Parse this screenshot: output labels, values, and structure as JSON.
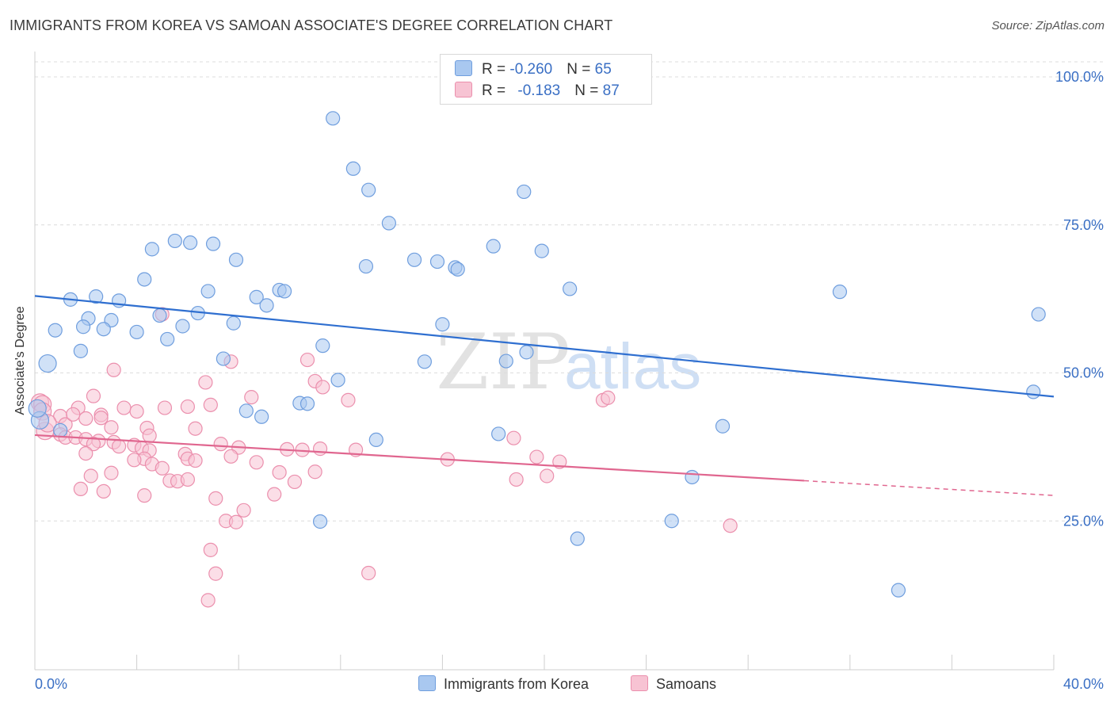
{
  "title": "IMMIGRANTS FROM KOREA VS SAMOAN ASSOCIATE'S DEGREE CORRELATION CHART",
  "source": "Source: ZipAtlas.com",
  "watermark": {
    "zip": "ZIP",
    "atlas": "atlas"
  },
  "legend": {
    "korea": {
      "r_label": "R = ",
      "r_value": "-0.260",
      "n_label": "N = ",
      "n_value": "65"
    },
    "samoa": {
      "r_label": "R = ",
      "r_value": "-0.183",
      "n_label": "N = ",
      "n_value": "87"
    }
  },
  "chart_data": {
    "type": "scatter",
    "ylabel": "Associate's Degree",
    "xlim": [
      0,
      40
    ],
    "ylim": [
      0,
      105
    ],
    "x_tick_labels": {
      "left": "0.0%",
      "right": "40.0%"
    },
    "y_ticks": [
      {
        "value": 100,
        "label": "100.0%"
      },
      {
        "value": 75,
        "label": "75.0%"
      },
      {
        "value": 50,
        "label": "50.0%"
      },
      {
        "value": 25,
        "label": "25.0%"
      }
    ],
    "grid": "horizontal dashed",
    "legend_placement": "top-center",
    "colors": {
      "korea_fill": "#a9c8f0",
      "korea_stroke": "#6f9ede",
      "korea_line": "#2f6fd0",
      "samoa_fill": "#f7c3d3",
      "samoa_stroke": "#eb8fad",
      "samoa_line": "#e0668f",
      "tick_label": "#3a6fc4"
    },
    "series": [
      {
        "name": "Immigrants from Korea",
        "trend": {
          "x0": 0,
          "y0": 63,
          "x1": 40,
          "y1": 46
        },
        "points": [
          [
            11.7,
            93.0
          ],
          [
            12.5,
            84.5
          ],
          [
            13.1,
            80.9
          ],
          [
            19.2,
            80.6
          ],
          [
            13.9,
            75.3
          ],
          [
            5.5,
            72.3
          ],
          [
            6.1,
            72.0
          ],
          [
            7.0,
            71.8
          ],
          [
            4.6,
            70.9
          ],
          [
            18.0,
            71.4
          ],
          [
            19.9,
            70.6
          ],
          [
            7.9,
            69.1
          ],
          [
            14.9,
            69.1
          ],
          [
            15.8,
            68.8
          ],
          [
            16.5,
            67.8
          ],
          [
            16.6,
            67.5
          ],
          [
            13.0,
            68.0
          ],
          [
            4.3,
            65.8
          ],
          [
            9.6,
            64.0
          ],
          [
            9.8,
            63.8
          ],
          [
            6.8,
            63.8
          ],
          [
            21.0,
            64.2
          ],
          [
            31.6,
            63.7
          ],
          [
            2.4,
            62.9
          ],
          [
            8.7,
            62.8
          ],
          [
            1.4,
            62.4
          ],
          [
            3.3,
            62.2
          ],
          [
            9.1,
            61.4
          ],
          [
            6.4,
            60.1
          ],
          [
            4.9,
            59.7
          ],
          [
            39.4,
            59.9
          ],
          [
            2.1,
            59.2
          ],
          [
            3.0,
            58.9
          ],
          [
            1.9,
            57.8
          ],
          [
            5.8,
            57.9
          ],
          [
            7.8,
            58.4
          ],
          [
            0.8,
            57.2
          ],
          [
            2.7,
            57.4
          ],
          [
            4.0,
            56.9
          ],
          [
            16.0,
            58.2
          ],
          [
            5.2,
            55.7
          ],
          [
            11.3,
            54.6
          ],
          [
            1.8,
            53.7
          ],
          [
            19.3,
            53.5
          ],
          [
            7.4,
            52.4
          ],
          [
            18.5,
            52.0
          ],
          [
            15.3,
            51.9
          ],
          [
            0.5,
            51.6
          ],
          [
            11.9,
            48.8
          ],
          [
            10.4,
            44.9
          ],
          [
            10.7,
            44.8
          ],
          [
            8.3,
            43.6
          ],
          [
            8.9,
            42.6
          ],
          [
            0.2,
            42.0
          ],
          [
            27.0,
            41.0
          ],
          [
            18.2,
            39.7
          ],
          [
            13.4,
            38.7
          ],
          [
            25.8,
            32.4
          ],
          [
            25.0,
            25.0
          ],
          [
            11.2,
            24.9
          ],
          [
            21.3,
            22.0
          ],
          [
            33.9,
            13.3
          ],
          [
            39.2,
            46.8
          ],
          [
            0.1,
            44.0
          ],
          [
            1.0,
            40.3
          ]
        ]
      },
      {
        "name": "Samoans",
        "trend": {
          "x0": 0,
          "y0": 39.5,
          "x1": 30.2,
          "y1": 31.8,
          "dash_x1": 40,
          "dash_y1": 29.3
        },
        "points": [
          [
            5.0,
            59.9
          ],
          [
            7.7,
            51.9
          ],
          [
            10.7,
            52.2
          ],
          [
            3.1,
            50.5
          ],
          [
            6.7,
            48.4
          ],
          [
            11.0,
            48.6
          ],
          [
            11.3,
            47.6
          ],
          [
            2.3,
            46.1
          ],
          [
            8.5,
            45.9
          ],
          [
            12.3,
            45.4
          ],
          [
            22.3,
            45.4
          ],
          [
            22.5,
            45.8
          ],
          [
            0.2,
            45.0
          ],
          [
            0.3,
            44.7
          ],
          [
            1.7,
            44.1
          ],
          [
            3.5,
            44.1
          ],
          [
            5.1,
            44.1
          ],
          [
            6.0,
            44.3
          ],
          [
            6.9,
            44.6
          ],
          [
            0.3,
            43.5
          ],
          [
            2.6,
            42.9
          ],
          [
            1.0,
            42.7
          ],
          [
            2.0,
            42.3
          ],
          [
            4.0,
            43.5
          ],
          [
            1.2,
            41.3
          ],
          [
            2.6,
            42.4
          ],
          [
            3.0,
            40.8
          ],
          [
            4.4,
            40.7
          ],
          [
            6.3,
            40.6
          ],
          [
            0.4,
            40.2
          ],
          [
            1.0,
            39.6
          ],
          [
            1.2,
            39.1
          ],
          [
            1.6,
            39.1
          ],
          [
            2.0,
            38.8
          ],
          [
            2.5,
            38.5
          ],
          [
            2.3,
            38.0
          ],
          [
            4.5,
            39.4
          ],
          [
            3.1,
            38.3
          ],
          [
            3.3,
            37.6
          ],
          [
            3.9,
            37.8
          ],
          [
            4.2,
            37.3
          ],
          [
            4.5,
            36.9
          ],
          [
            7.3,
            38.0
          ],
          [
            8.0,
            37.4
          ],
          [
            9.9,
            37.1
          ],
          [
            10.5,
            37.0
          ],
          [
            11.2,
            37.2
          ],
          [
            12.6,
            37.0
          ],
          [
            5.9,
            36.3
          ],
          [
            6.0,
            35.5
          ],
          [
            4.3,
            35.5
          ],
          [
            3.9,
            35.3
          ],
          [
            2.0,
            36.4
          ],
          [
            8.7,
            34.9
          ],
          [
            4.6,
            34.6
          ],
          [
            7.7,
            35.9
          ],
          [
            16.2,
            35.4
          ],
          [
            19.7,
            35.8
          ],
          [
            20.6,
            35.0
          ],
          [
            18.8,
            39.0
          ],
          [
            9.6,
            33.2
          ],
          [
            10.2,
            31.6
          ],
          [
            11.0,
            33.3
          ],
          [
            2.2,
            32.6
          ],
          [
            3.0,
            33.1
          ],
          [
            5.3,
            31.8
          ],
          [
            5.6,
            31.7
          ],
          [
            6.0,
            32.0
          ],
          [
            20.1,
            32.6
          ],
          [
            18.9,
            32.0
          ],
          [
            1.8,
            30.4
          ],
          [
            2.7,
            30.0
          ],
          [
            4.3,
            29.3
          ],
          [
            7.1,
            28.8
          ],
          [
            8.2,
            26.8
          ],
          [
            9.4,
            29.5
          ],
          [
            7.5,
            25.0
          ],
          [
            7.9,
            24.8
          ],
          [
            27.3,
            24.2
          ],
          [
            6.9,
            20.1
          ],
          [
            7.1,
            16.1
          ],
          [
            13.1,
            16.2
          ],
          [
            6.8,
            11.6
          ],
          [
            6.3,
            35.2
          ],
          [
            5.0,
            33.9
          ],
          [
            0.5,
            41.5
          ],
          [
            1.5,
            43.0
          ]
        ]
      }
    ]
  }
}
